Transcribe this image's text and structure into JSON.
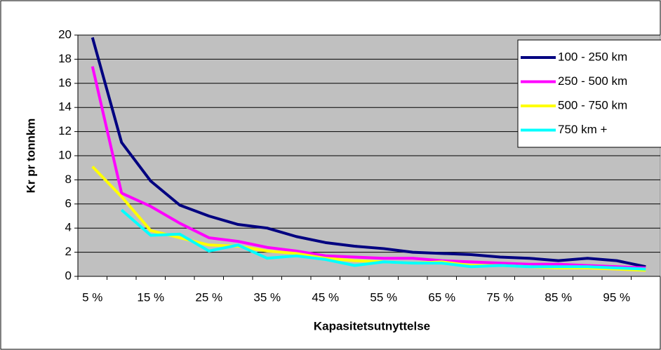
{
  "chart_data": {
    "type": "line",
    "x_label": "Kapasitetsutnyttelse",
    "y_label": "Kr pr tonnkm",
    "categories": [
      "5 %",
      null,
      "15 %",
      null,
      "25 %",
      null,
      "35 %",
      null,
      "45 %",
      null,
      "55 %",
      null,
      "65 %",
      null,
      "75 %",
      null,
      "85 %",
      null,
      "95 %",
      null
    ],
    "series": [
      {
        "name": "100 - 250 km",
        "color": "#000080",
        "values": [
          19.8,
          11.1,
          7.9,
          5.9,
          5.0,
          4.3,
          4.0,
          3.3,
          2.8,
          2.5,
          2.3,
          2.0,
          1.9,
          1.8,
          1.6,
          1.5,
          1.3,
          1.5,
          1.3,
          0.8
        ]
      },
      {
        "name": "250 - 500 km",
        "color": "#ff00ff",
        "values": [
          17.4,
          6.9,
          5.8,
          4.4,
          3.2,
          2.9,
          2.4,
          2.1,
          1.7,
          1.6,
          1.5,
          1.5,
          1.3,
          1.2,
          1.1,
          1.0,
          1.0,
          0.9,
          0.8,
          0.7
        ]
      },
      {
        "name": "500 - 750 km",
        "color": "#ffff00",
        "values": [
          9.1,
          6.6,
          3.8,
          3.2,
          2.6,
          2.5,
          2.1,
          1.9,
          1.5,
          1.3,
          1.2,
          1.1,
          1.2,
          0.9,
          0.9,
          0.8,
          0.7,
          0.7,
          0.6,
          0.5
        ]
      },
      {
        "name": "750 km +",
        "color": "#00ffff",
        "values": [
          null,
          5.5,
          3.4,
          3.5,
          2.1,
          2.6,
          1.5,
          1.7,
          1.4,
          0.9,
          1.2,
          1.1,
          1.1,
          0.8,
          0.9,
          0.8,
          0.8,
          0.8,
          0.7,
          0.6
        ]
      }
    ],
    "ylim": [
      0,
      20
    ],
    "yticks": [
      0,
      2,
      4,
      6,
      8,
      10,
      12,
      14,
      16,
      18,
      20
    ],
    "grid": true,
    "legend": "top-right",
    "plot_background": "#c0c0c0"
  }
}
